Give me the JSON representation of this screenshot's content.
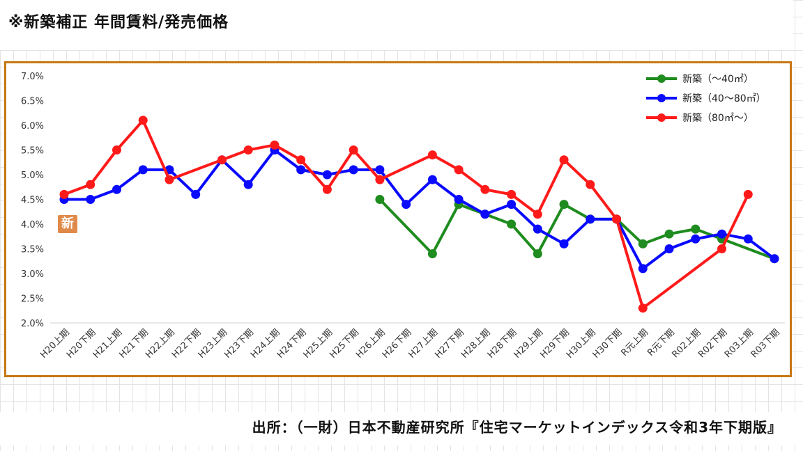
{
  "page": {
    "title": "※新築補正 年間賃料/発売価格",
    "source": "出所：（一財）日本不動産研究所『住宅マーケットインデックス令和3年下期版』",
    "badge": "新"
  },
  "chart_data": {
    "type": "line",
    "title": "",
    "xlabel": "",
    "ylabel": "",
    "ylim": [
      2.0,
      7.0
    ],
    "yticks": [
      "2.0%",
      "2.5%",
      "3.0%",
      "3.5%",
      "4.0%",
      "4.5%",
      "5.0%",
      "5.5%",
      "6.0%",
      "6.5%",
      "7.0%"
    ],
    "grid": "horizontal-bottom-only",
    "legend_position": "top-right",
    "categories": [
      "H20上期",
      "H20下期",
      "H21上期",
      "H21下期",
      "H22上期",
      "H22下期",
      "H23上期",
      "H23下期",
      "H24上期",
      "H24下期",
      "H25上期",
      "H25下期",
      "H26上期",
      "H26下期",
      "H27上期",
      "H27下期",
      "H28上期",
      "H28下期",
      "H29上期",
      "H29下期",
      "H30上期",
      "H30下期",
      "R元上期",
      "R元下期",
      "R02上期",
      "R02下期",
      "R03上期",
      "R03下期"
    ],
    "series": [
      {
        "name": "新築（～40㎡）",
        "color": "#1e8c1e",
        "values": [
          null,
          null,
          null,
          null,
          null,
          null,
          null,
          null,
          null,
          null,
          null,
          null,
          4.5,
          null,
          3.4,
          4.4,
          4.2,
          4.0,
          3.4,
          4.4,
          4.1,
          4.1,
          3.6,
          3.8,
          3.9,
          3.7,
          null,
          3.3
        ]
      },
      {
        "name": "新築（40～80㎡）",
        "color": "#0a0aff",
        "values": [
          4.5,
          4.5,
          4.7,
          5.1,
          5.1,
          4.6,
          5.3,
          4.8,
          5.5,
          5.1,
          5.0,
          5.1,
          5.1,
          4.4,
          4.9,
          4.5,
          4.2,
          4.4,
          3.9,
          3.6,
          4.1,
          4.1,
          3.1,
          3.5,
          3.7,
          3.8,
          3.7,
          3.3
        ]
      },
      {
        "name": "新築（80㎡～）",
        "color": "#ff1a1a",
        "values": [
          4.6,
          4.8,
          5.5,
          6.1,
          4.9,
          null,
          5.3,
          5.5,
          5.6,
          5.3,
          4.7,
          5.5,
          4.9,
          null,
          5.4,
          5.1,
          4.7,
          4.6,
          4.2,
          5.3,
          4.8,
          4.1,
          2.3,
          null,
          null,
          3.5,
          4.6,
          null
        ]
      }
    ]
  }
}
